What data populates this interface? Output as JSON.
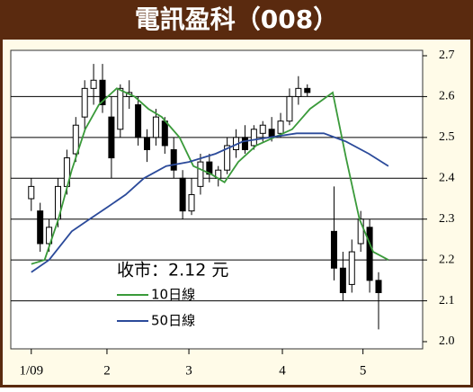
{
  "chart_data": {
    "type": "candlestick",
    "title": "電訊盈科（008）",
    "annotation": "收市：2.12 元",
    "x": [
      0,
      2,
      4,
      6,
      8,
      10,
      12,
      14,
      16,
      18,
      20,
      22,
      24,
      26,
      28,
      30,
      32,
      34,
      36,
      38,
      40,
      42,
      44,
      46,
      48,
      50,
      52,
      54,
      56,
      58,
      60,
      62,
      68,
      70,
      72,
      74,
      76,
      78
    ],
    "open": [
      2.35,
      2.32,
      2.24,
      2.3,
      2.38,
      2.46,
      2.55,
      2.62,
      2.64,
      2.55,
      2.52,
      2.6,
      2.58,
      2.5,
      2.5,
      2.54,
      2.47,
      2.4,
      2.32,
      2.38,
      2.44,
      2.4,
      2.42,
      2.47,
      2.5,
      2.48,
      2.51,
      2.52,
      2.51,
      2.54,
      2.6,
      2.62,
      2.27,
      2.18,
      2.14,
      2.24,
      2.28,
      2.15
    ],
    "high": [
      2.4,
      2.34,
      2.3,
      2.4,
      2.47,
      2.55,
      2.64,
      2.68,
      2.68,
      2.6,
      2.63,
      2.64,
      2.6,
      2.52,
      2.57,
      2.55,
      2.5,
      2.42,
      2.4,
      2.46,
      2.46,
      2.43,
      2.5,
      2.52,
      2.53,
      2.53,
      2.54,
      2.55,
      2.56,
      2.62,
      2.65,
      2.63,
      2.38,
      2.22,
      2.25,
      2.32,
      2.3,
      2.17
    ],
    "low": [
      2.32,
      2.22,
      2.22,
      2.28,
      2.36,
      2.44,
      2.52,
      2.58,
      2.56,
      2.4,
      2.5,
      2.57,
      2.48,
      2.44,
      2.48,
      2.46,
      2.4,
      2.3,
      2.31,
      2.36,
      2.39,
      2.38,
      2.41,
      2.45,
      2.46,
      2.47,
      2.49,
      2.49,
      2.5,
      2.53,
      2.58,
      2.6,
      2.15,
      2.1,
      2.12,
      2.22,
      2.12,
      2.03
    ],
    "close": [
      2.38,
      2.24,
      2.28,
      2.38,
      2.45,
      2.53,
      2.62,
      2.64,
      2.58,
      2.45,
      2.62,
      2.61,
      2.5,
      2.47,
      2.55,
      2.48,
      2.42,
      2.32,
      2.36,
      2.44,
      2.41,
      2.42,
      2.48,
      2.5,
      2.47,
      2.52,
      2.53,
      2.5,
      2.54,
      2.6,
      2.62,
      2.61,
      2.18,
      2.12,
      2.22,
      2.3,
      2.15,
      2.12
    ],
    "up_color": "#ffffff",
    "down_color": "#000000",
    "series": [
      {
        "name": "10日線",
        "color": "#3a9a3a",
        "x": [
          0,
          3,
          6.1,
          9.1,
          12.1,
          15.2,
          19.2,
          23.2,
          26.3,
          29.3,
          33.3,
          36.4,
          40.4,
          43.4,
          46.5,
          50.5,
          54.5,
          58.6,
          62.6,
          67.7,
          70.7,
          73.7,
          76.8,
          80.2
        ],
        "values": [
          2.19,
          2.2,
          2.3,
          2.42,
          2.52,
          2.58,
          2.62,
          2.6,
          2.57,
          2.55,
          2.5,
          2.43,
          2.41,
          2.39,
          2.44,
          2.48,
          2.5,
          2.52,
          2.57,
          2.61,
          2.45,
          2.3,
          2.22,
          2.2
        ]
      },
      {
        "name": "50日線",
        "color": "#2b4a9a",
        "x": [
          0,
          4,
          9.1,
          13.1,
          17.2,
          21.2,
          25.3,
          30.3,
          35.4,
          41.4,
          47.5,
          53.5,
          59.6,
          65.7,
          70.7,
          75.8,
          80.2
        ],
        "values": [
          2.17,
          2.2,
          2.27,
          2.3,
          2.33,
          2.36,
          2.4,
          2.43,
          2.44,
          2.46,
          2.49,
          2.5,
          2.51,
          2.51,
          2.49,
          2.46,
          2.43
        ]
      }
    ],
    "xlim": [
      -4.6,
      87.9
    ],
    "ylim": [
      2.0,
      2.7
    ],
    "xticks": [
      {
        "value": 0,
        "label": "1/09"
      },
      {
        "value": 17,
        "label": "2"
      },
      {
        "value": 35.4,
        "label": "3"
      },
      {
        "value": 56.4,
        "label": "4"
      },
      {
        "value": 74.5,
        "label": "5"
      }
    ],
    "yticks": [
      {
        "value": 2,
        "label": "2.0"
      },
      2.1,
      2.2,
      2.3,
      2.4,
      2.5,
      2.6,
      2.7
    ],
    "grid": true
  }
}
